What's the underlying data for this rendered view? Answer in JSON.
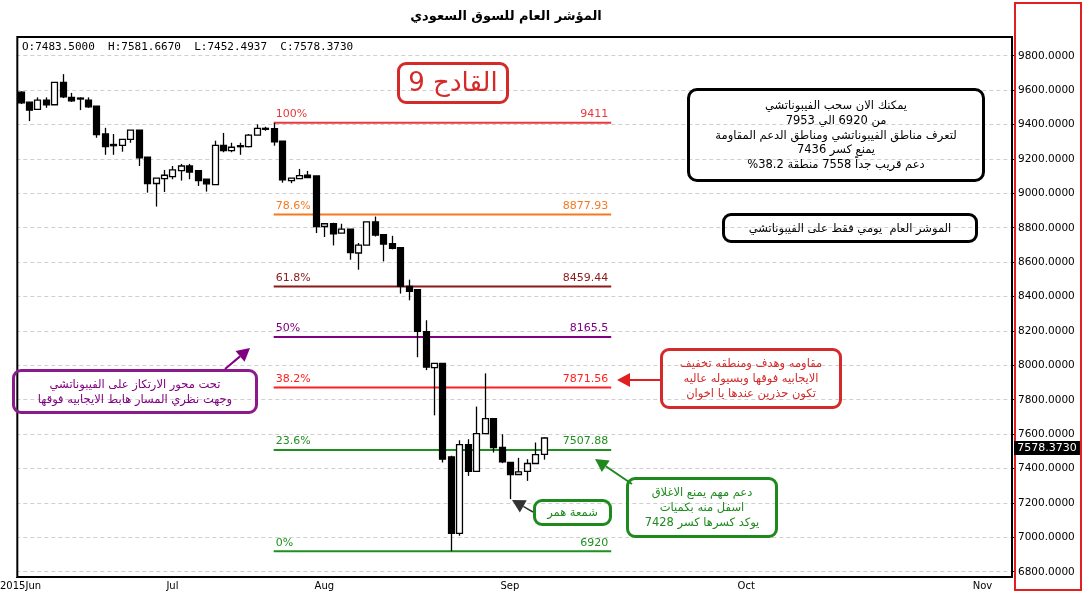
{
  "chart_data": {
    "type": "candlestick",
    "title": "المؤشر العام للسوق السعودي",
    "color": "#000000",
    "categories": [
      "2015Jun",
      null,
      null,
      null,
      null,
      null,
      null,
      null,
      null,
      null,
      null,
      null,
      null,
      null,
      null,
      null,
      null,
      null,
      "Jul",
      null,
      null,
      null,
      null,
      null,
      null,
      null,
      null,
      null,
      null,
      null,
      null,
      null,
      null,
      null,
      null,
      null,
      "Aug",
      null,
      null,
      null,
      null,
      null,
      null,
      null,
      null,
      null,
      null,
      null,
      null,
      null,
      null,
      null,
      null,
      null,
      null,
      null,
      null,
      null,
      "Sep",
      null,
      null,
      null,
      null,
      null,
      null,
      null,
      null,
      null,
      null,
      null,
      null,
      null,
      null,
      null,
      null,
      null,
      null,
      null,
      null,
      null,
      null,
      null,
      null,
      null,
      null,
      null,
      "Oct",
      null,
      null,
      null,
      null,
      null,
      null,
      null,
      null,
      null,
      null,
      null,
      null,
      null,
      null,
      null,
      null,
      null,
      null,
      null,
      null,
      null,
      null,
      null,
      null,
      null,
      null,
      null,
      "Nov",
      null,
      null,
      null
    ],
    "ohlc": [
      [
        9589,
        9595,
        9520,
        9527
      ],
      [
        9531,
        9531,
        9421,
        9485
      ],
      [
        9489,
        9559,
        9489,
        9543
      ],
      [
        9543,
        9559,
        9498,
        9516
      ],
      [
        9516,
        9646,
        9516,
        9646
      ],
      [
        9646,
        9694,
        9555,
        9562
      ],
      [
        9559,
        9585,
        9533,
        9539
      ],
      [
        9555,
        9559,
        9485,
        9550
      ],
      [
        9543,
        9559,
        9498,
        9504
      ],
      [
        9508,
        9508,
        9324,
        9342
      ],
      [
        9346,
        9382,
        9225,
        9272
      ],
      [
        9285,
        9346,
        9225,
        9278
      ],
      [
        9280,
        9315,
        9243,
        9315
      ],
      [
        9315,
        9369,
        9295,
        9369
      ],
      [
        9369,
        9369,
        9160,
        9208
      ],
      [
        9212,
        9212,
        9005,
        9058
      ],
      [
        9058,
        9089,
        8924,
        9089
      ],
      [
        9087,
        9137,
        9009,
        9106
      ],
      [
        9098,
        9160,
        9083,
        9137
      ],
      [
        9133,
        9172,
        9075,
        9160
      ],
      [
        9160,
        9172,
        9083,
        9125
      ],
      [
        9133,
        9133,
        9044,
        9075
      ],
      [
        9083,
        9083,
        9011,
        9056
      ],
      [
        9052,
        9307,
        9052,
        9280
      ],
      [
        9280,
        9352,
        9240,
        9249
      ],
      [
        9249,
        9295,
        9240,
        9269
      ],
      [
        9272,
        9295,
        9225,
        9278
      ],
      [
        9272,
        9346,
        9269,
        9340
      ],
      [
        9340,
        9402,
        9340,
        9379
      ],
      [
        9377,
        9388,
        9365,
        9379
      ],
      [
        9377,
        9411,
        9278,
        9301
      ],
      [
        9305,
        9305,
        9063,
        9079
      ],
      [
        9075,
        9089,
        9060,
        9089
      ],
      [
        9087,
        9143,
        9087,
        9104
      ],
      [
        9106,
        9131,
        9090,
        9092
      ],
      [
        9102,
        9102,
        8770,
        8808
      ],
      [
        8808,
        8824,
        8747,
        8824
      ],
      [
        8824,
        8830,
        8698,
        8766
      ],
      [
        8770,
        8824,
        8770,
        8793
      ],
      [
        8793,
        8793,
        8615,
        8657
      ],
      [
        8654,
        8712,
        8557,
        8700
      ],
      [
        8700,
        8835,
        8700,
        8835
      ],
      [
        8835,
        8866,
        8750,
        8758
      ],
      [
        8760,
        8760,
        8605,
        8706
      ],
      [
        8708,
        8754,
        8675,
        8681
      ],
      [
        8685,
        8685,
        8418,
        8460
      ],
      [
        8460,
        8499,
        8379,
        8431
      ],
      [
        8441,
        8441,
        8048,
        8199
      ],
      [
        8197,
        8263,
        7973,
        7990
      ],
      [
        7987,
        8012,
        7710,
        8012
      ],
      [
        8012,
        8012,
        7436,
        7455
      ],
      [
        7468,
        7475,
        6920,
        7024
      ],
      [
        7024,
        7565,
        7010,
        7540
      ],
      [
        7540,
        7571,
        7358,
        7384
      ],
      [
        7384,
        7761,
        7384,
        7604
      ],
      [
        7604,
        7954,
        7604,
        7691
      ],
      [
        7691,
        7691,
        7494,
        7523
      ],
      [
        7523,
        7600,
        7432,
        7439
      ],
      [
        7436,
        7436,
        7223,
        7366
      ],
      [
        7366,
        7463,
        7366,
        7381
      ],
      [
        7384,
        7455,
        7329,
        7430
      ],
      [
        7430,
        7552,
        7430,
        7482
      ],
      [
        7483.5,
        7581.667,
        7452.4937,
        7578.373
      ],
      null,
      null,
      null,
      null,
      null,
      null,
      null,
      null,
      null,
      null,
      null,
      null,
      null,
      null,
      null,
      null,
      null,
      null,
      null,
      null,
      null,
      null,
      null,
      null,
      null,
      null,
      null,
      null,
      null,
      null,
      null,
      null,
      null,
      null,
      null,
      null,
      null,
      null,
      null,
      null,
      null,
      null,
      null,
      null,
      null,
      null,
      null,
      null,
      null,
      null,
      null,
      null,
      null,
      null,
      null
    ],
    "colors": [
      "#000000",
      "#000000",
      "#ffffff",
      "#000000",
      "#ffffff",
      "#000000",
      "#000000",
      "#000000",
      "#000000",
      "#000000",
      "#000000",
      "#000000",
      "#ffffff",
      "#ffffff",
      "#000000",
      "#000000",
      "#ffffff",
      "#ffffff",
      "#ffffff",
      "#ffffff",
      "#000000",
      "#000000",
      "#000000",
      "#ffffff",
      "#000000",
      "#ffffff",
      "#ffffff",
      "#ffffff",
      "#ffffff",
      "#ffffff",
      "#000000",
      "#000000",
      "#ffffff",
      "#ffffff",
      "#000000",
      "#000000",
      "#ffffff",
      "#000000",
      "#ffffff",
      "#000000",
      "#ffffff",
      "#ffffff",
      "#000000",
      "#000000",
      "#000000",
      "#000000",
      "#000000",
      "#000000",
      "#000000",
      "#ffffff",
      "#000000",
      "#000000",
      "#ffffff",
      "#000000",
      "#ffffff",
      "#ffffff",
      "#000000",
      "#000000",
      "#000000",
      "#ffffff",
      "#ffffff",
      "#ffffff",
      "#ffffff",
      null,
      null,
      null,
      null,
      null,
      null,
      null,
      null,
      null,
      null,
      null,
      null,
      null,
      null,
      null,
      null,
      null,
      null,
      null,
      null,
      null,
      null,
      null,
      null,
      null,
      null,
      null,
      null,
      null,
      null,
      null,
      null,
      null,
      null,
      null,
      null,
      null,
      null,
      null,
      null,
      null,
      null,
      null,
      null,
      null,
      null,
      null,
      null,
      null,
      null,
      null,
      null,
      null,
      null,
      null
    ],
    "ylim": [
      6770,
      9910
    ],
    "yticks": [
      {
        "value": 6800,
        "label": "6800.0000"
      },
      {
        "value": 7000,
        "label": "7000.0000"
      },
      {
        "value": 7200,
        "label": "7200.0000"
      },
      {
        "value": 7400,
        "label": "7400.0000"
      },
      {
        "value": 7600,
        "label": "7600.0000"
      },
      {
        "value": 7800,
        "label": "7800.0000"
      },
      {
        "value": 8000,
        "label": "8000.0000"
      },
      {
        "value": 8200,
        "label": "8200.0000"
      },
      {
        "value": 8400,
        "label": "8400.0000"
      },
      {
        "value": 8600,
        "label": "8600.0000"
      },
      {
        "value": 8800,
        "label": "8800.0000"
      },
      {
        "value": 9000,
        "label": "9000.0000"
      },
      {
        "value": 9200,
        "label": "9200.0000"
      },
      {
        "value": 9400,
        "label": "9400.0000"
      },
      {
        "value": 9600,
        "label": "9600.0000"
      },
      {
        "value": 9800,
        "label": "9800.0000"
      }
    ],
    "grid": "y",
    "ref_lines": [
      {
        "axis": "y",
        "value": 9411,
        "label": "9411",
        "color": "#e8383d"
      },
      {
        "axis": "y",
        "value": 8877.93,
        "label": "8877.93",
        "color": "#f7791f"
      },
      {
        "axis": "y",
        "value": 8459.44,
        "label": "8459.44",
        "color": "#8b1a1a"
      },
      {
        "axis": "y",
        "value": 8165.5,
        "label": "8165.5",
        "color": "#800080"
      },
      {
        "axis": "y",
        "value": 7871.56,
        "label": "7871.56",
        "color": "#ff2020"
      },
      {
        "axis": "y",
        "value": 7507.88,
        "label": "7507.88",
        "color": "#1f8f1f"
      },
      {
        "axis": "y",
        "value": 6920,
        "label": "6920",
        "color": "#1f8f1f"
      }
    ],
    "annotations": [
      "O:7483.5000  H:7581.6670  L:7452.4937  C:7578.3730",
      "القادح 9",
      "يمكنك الان سحب الفيبوناتشي\nمن 6920 الي 7953\nلتعرف مناطق الفيبوناتشي ومناطق الدعم المقاومة\nيمنع كسر 7436\nدعم قريب جداً 7558 منطقة 38.2%",
      "الموشر العام  يومي فقط على الفيبوناتشي",
      "تحت محور الارتكاز على الفيبوناتشي\nوجهت نظري المسار هابط الايجابيه فوقها",
      "مقاومه وهدف ومنطقه تخفيف\nالايجابيه فوقها وبسيوله عاليه\nتكون حذرين عندها يا اخوان",
      "دعم مهم يمنع الاغلاق\nاسفل منه بكميات\nيوكد كسرها كسر 7428",
      "شمعة همر",
      "7578.3730",
      {
        "text": "100%",
        "y": 9411
      },
      {
        "text": "78.6%",
        "y": 8877.93
      },
      {
        "text": "61.8%",
        "y": 8459.44
      },
      {
        "text": "50%",
        "y": 8165.5
      },
      {
        "text": "38.2%",
        "y": 7871.56
      },
      {
        "text": "23.6%",
        "y": 7507.88
      },
      {
        "text": "0%",
        "y": 6920
      }
    ]
  }
}
